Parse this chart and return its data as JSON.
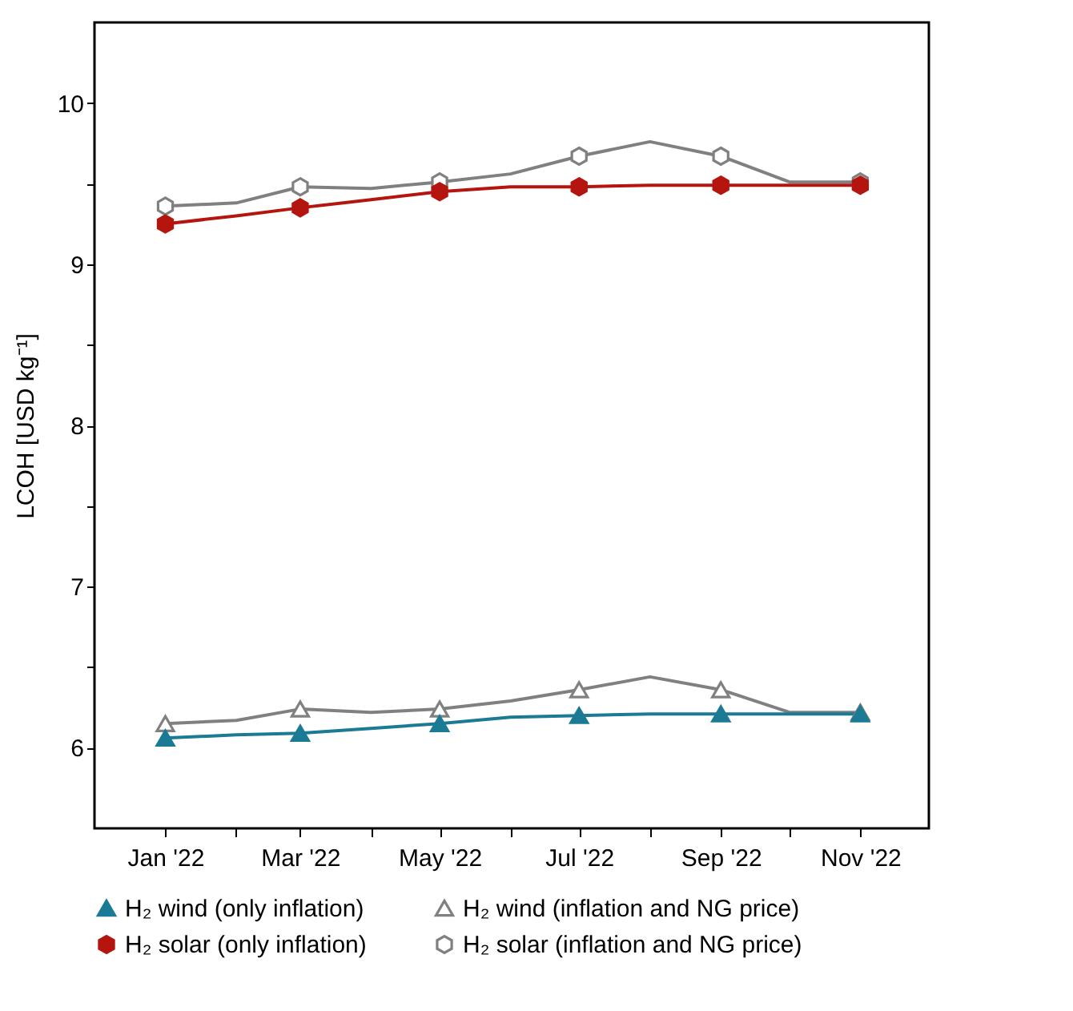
{
  "chart_data": {
    "type": "line",
    "ylabel": "LCOH [USD kg⁻¹]",
    "x": [
      "2022-01",
      "2022-02",
      "2022-03",
      "2022-04",
      "2022-05",
      "2022-06",
      "2022-07",
      "2022-08",
      "2022-09",
      "2022-10",
      "2022-11"
    ],
    "series": [
      {
        "name": "H₂ wind (only inflation)",
        "color": "#1b7a94",
        "marker": "triangle",
        "values": [
          6.06,
          6.08,
          6.09,
          6.12,
          6.15,
          6.19,
          6.2,
          6.21,
          6.21,
          6.21,
          6.21
        ]
      },
      {
        "name": "H₂ solar (only inflation)",
        "color": "#b5150f",
        "values": [
          9.25,
          9.3,
          9.35,
          9.4,
          9.45,
          9.48,
          9.48,
          9.49,
          9.49,
          9.49,
          9.49
        ]
      },
      {
        "name": "H₂ wind (inflation and NG price)",
        "color": "#808080",
        "marker": "triangle",
        "values": [
          6.15,
          6.17,
          6.24,
          6.22,
          6.24,
          6.29,
          6.36,
          6.44,
          6.36,
          6.22,
          6.22
        ]
      },
      {
        "name": "H₂ solar (inflation and NG price)",
        "color": "#808080",
        "values": [
          9.36,
          9.38,
          9.48,
          9.47,
          9.51,
          9.56,
          9.67,
          9.76,
          9.67,
          9.51,
          9.51
        ]
      }
    ],
    "xlim": [
      "2021-12",
      "2022-12"
    ],
    "xticks": [
      {
        "value": "2022-01",
        "label": "Jan '22"
      },
      {
        "value": "2022-02",
        "label": null
      },
      {
        "value": "2022-03",
        "label": "Mar '22"
      },
      {
        "value": "2022-04",
        "label": null
      },
      {
        "value": "2022-05",
        "label": "May '22"
      },
      {
        "value": "2022-06",
        "label": null
      },
      {
        "value": "2022-07",
        "label": "Jul '22"
      },
      {
        "value": "2022-08",
        "label": null
      },
      {
        "value": "2022-09",
        "label": "Sep '22"
      },
      {
        "value": "2022-10",
        "label": null
      },
      {
        "value": "2022-11",
        "label": "Nov '22"
      }
    ],
    "ylim": [
      5.5,
      10.5
    ],
    "yticks": [
      6,
      {
        "value": 6.5,
        "label": null
      },
      7,
      {
        "value": 7.5,
        "label": null
      },
      8,
      {
        "value": 8.5,
        "label": null
      },
      9,
      {
        "value": 9.5,
        "label": null
      },
      10
    ],
    "grid": false,
    "legend": "bottom",
    "line_style": "solid"
  }
}
